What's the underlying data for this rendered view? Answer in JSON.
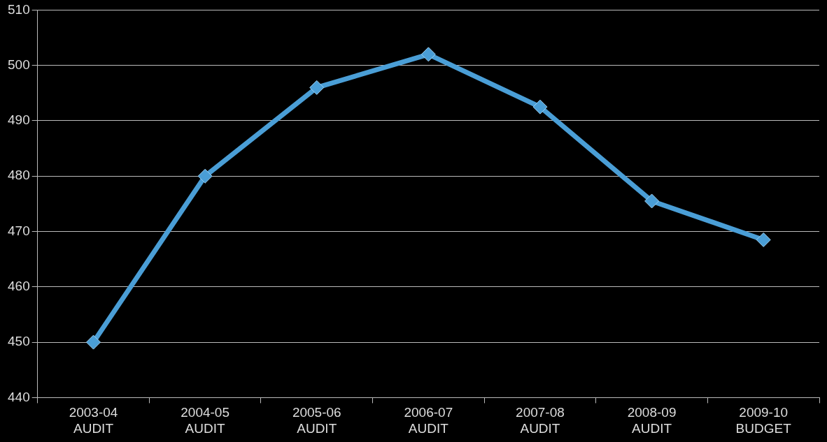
{
  "chart_data": {
    "type": "line",
    "categories": [
      "2003-04\nAUDIT",
      "2004-05\nAUDIT",
      "2005-06\nAUDIT",
      "2006-07\nAUDIT",
      "2007-08\nAUDIT",
      "2008-09\nAUDIT",
      "2009-10\nBUDGET"
    ],
    "series": [
      {
        "color": "#4a9ed6",
        "values": [
          450,
          480,
          496,
          502,
          492.5,
          475.5,
          468.5
        ]
      }
    ],
    "ylim": [
      440,
      510
    ],
    "yticks": [
      440,
      450,
      460,
      470,
      480,
      490,
      500,
      510
    ],
    "grid": "y",
    "legend": false,
    "marker": "diamond",
    "line_style": "solid"
  }
}
